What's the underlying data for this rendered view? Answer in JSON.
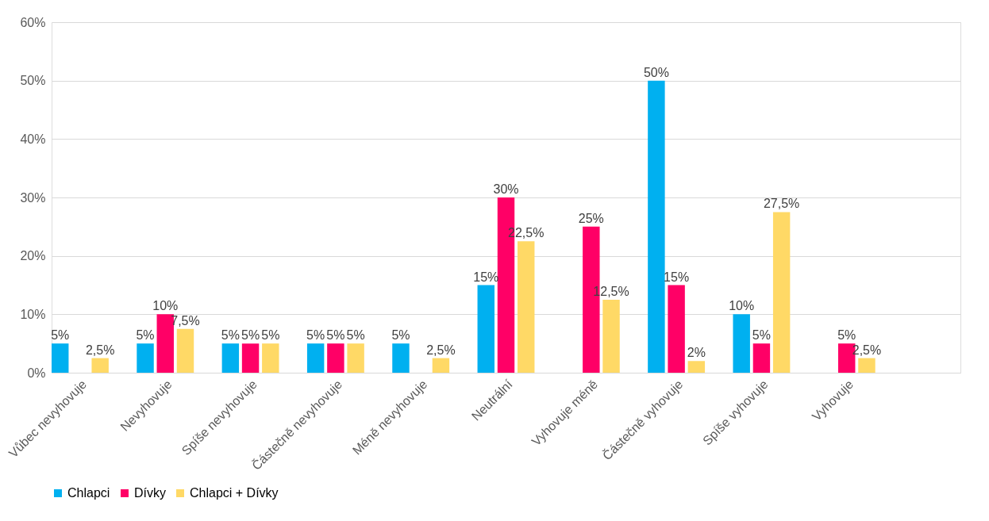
{
  "chart_data": {
    "type": "bar",
    "categories": [
      "Vůbec nevyhovuje",
      "Nevyhovuje",
      "Spíše nevyhovuje",
      "Částečně nevyhovuje",
      "Méně nevyhovuje",
      "Neutrální",
      "Vyhovuje méně",
      "Částečně vyhovuje",
      "Spíše vyhovuje",
      "Vyhovuje",
      null
    ],
    "series": [
      {
        "name": "Chlapci",
        "color": "#00b0f0",
        "values": [
          5,
          5,
          5,
          5,
          5,
          15,
          null,
          50,
          10,
          null,
          null
        ],
        "value_labels": [
          "5%",
          "5%",
          "5%",
          "5%",
          "5%",
          "15%",
          null,
          "50%",
          "10%",
          null,
          null
        ]
      },
      {
        "name": "Dívky",
        "color": "#ff0066",
        "values": [
          null,
          10,
          5,
          5,
          null,
          30,
          25,
          15,
          5,
          5,
          null
        ],
        "value_labels": [
          null,
          "10%",
          "5%",
          "5%",
          null,
          "30%",
          "25%",
          "15%",
          "5%",
          "5%",
          null
        ]
      },
      {
        "name": "Chlapci + Dívky",
        "color": "#ffd966",
        "values": [
          2.5,
          7.5,
          5,
          5,
          2.5,
          22.5,
          12.5,
          2,
          27.5,
          2.5,
          null
        ],
        "value_labels": [
          "2,5%",
          "7,5%",
          "5%",
          "5%",
          "2,5%",
          "22,5%",
          "12,5%",
          "2%",
          "27,5%",
          "2,5%",
          null
        ]
      }
    ],
    "ylim": [
      0,
      60
    ],
    "yticks": [
      {
        "value": 0,
        "label": "0%"
      },
      {
        "value": 10,
        "label": "10%"
      },
      {
        "value": 20,
        "label": "20%"
      },
      {
        "value": 30,
        "label": "30%"
      },
      {
        "value": 40,
        "label": "40%"
      },
      {
        "value": 50,
        "label": "50%"
      },
      {
        "value": 60,
        "label": "60%"
      }
    ],
    "grid": "y",
    "legend": "bottom"
  }
}
